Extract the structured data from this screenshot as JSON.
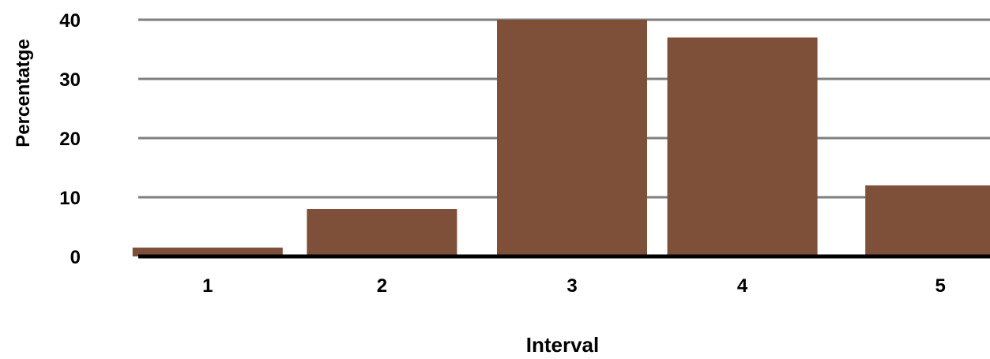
{
  "chart_data": {
    "type": "bar",
    "title": "",
    "xlabel": "Interval",
    "ylabel": "Percentatge",
    "categories": [
      "1",
      "2",
      "3",
      "4",
      "5"
    ],
    "values": [
      1.5,
      8,
      40,
      37,
      12
    ],
    "ylim": [
      0,
      40
    ],
    "yticks": [
      0,
      10,
      20,
      30,
      40
    ],
    "grid": true,
    "legend": "none",
    "colors": {
      "bar": "#7e4f39",
      "grid": "#7f7f7f",
      "axis": "#000000",
      "text": "#000000"
    }
  }
}
